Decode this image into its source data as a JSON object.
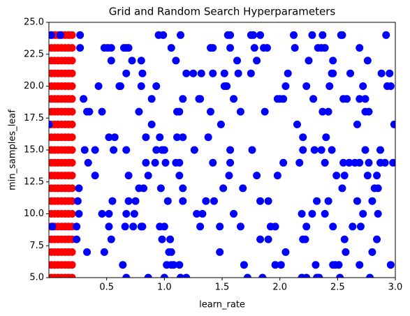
{
  "chart_data": {
    "type": "scatter",
    "title": "Grid and Random Search Hyperparameters",
    "x_label": "learn_rate",
    "y_label": "min_samples_leaf",
    "xlim": [
      0,
      3
    ],
    "ylim": [
      5,
      25
    ],
    "xticks": [
      0.5,
      {
        "value": 1.0,
        "label": "1.0"
      },
      1.5,
      {
        "value": 2.0,
        "label": "2.0"
      },
      2.5,
      {
        "value": 3.0,
        "label": "3.0"
      }
    ],
    "yticks": [
      {
        "value": 5,
        "label": "5.0"
      },
      7.5,
      {
        "value": 10,
        "label": "10.0"
      },
      12.5,
      {
        "value": 15,
        "label": "15.0"
      },
      17.5,
      {
        "value": 20,
        "label": "20.0"
      },
      22.5,
      {
        "value": 25,
        "label": "25.0"
      }
    ],
    "series": [
      {
        "color": "#ff0000",
        "x": [
          0.02,
          0.05,
          0.08,
          0.11,
          0.14,
          0.17,
          0.2,
          0.02,
          0.05,
          0.08,
          0.11,
          0.14,
          0.17,
          0.2,
          0.02,
          0.05,
          0.08,
          0.11,
          0.14,
          0.17,
          0.2,
          0.02,
          0.05,
          0.08,
          0.11,
          0.14,
          0.17,
          0.2,
          0.02,
          0.05,
          0.08,
          0.11,
          0.14,
          0.17,
          0.2,
          0.02,
          0.05,
          0.08,
          0.11,
          0.14,
          0.17,
          0.2,
          0.02,
          0.05,
          0.08,
          0.11,
          0.14,
          0.17,
          0.2,
          0.02,
          0.05,
          0.08,
          0.11,
          0.14,
          0.17,
          0.2,
          0.02,
          0.05,
          0.08,
          0.11,
          0.14,
          0.17,
          0.2,
          0.02,
          0.05,
          0.08,
          0.11,
          0.14,
          0.17,
          0.2,
          0.02,
          0.05,
          0.08,
          0.11,
          0.14,
          0.17,
          0.2,
          0.02,
          0.05,
          0.08,
          0.11,
          0.14,
          0.17,
          0.2,
          0.02,
          0.05,
          0.08,
          0.11,
          0.14,
          0.17,
          0.2,
          0.02,
          0.05,
          0.08,
          0.11,
          0.14,
          0.17,
          0.2,
          0.02,
          0.05,
          0.08,
          0.11,
          0.14,
          0.17,
          0.2,
          0.02,
          0.05,
          0.08,
          0.11,
          0.14,
          0.17,
          0.2,
          0.02,
          0.05,
          0.08,
          0.11,
          0.14,
          0.17,
          0.2,
          0.02,
          0.05,
          0.08,
          0.11,
          0.14,
          0.17,
          0.2,
          0.02,
          0.05,
          0.08,
          0.11,
          0.14,
          0.17,
          0.2,
          0.02,
          0.05,
          0.08,
          0.11,
          0.14,
          0.17,
          0.2
        ],
        "values": [
          5,
          5,
          5,
          5,
          5,
          5,
          5,
          6,
          6,
          6,
          6,
          6,
          6,
          6,
          7,
          7,
          7,
          7,
          7,
          7,
          7,
          8,
          8,
          8,
          8,
          8,
          8,
          8,
          9,
          9,
          9,
          9,
          9,
          9,
          9,
          10,
          10,
          10,
          10,
          10,
          10,
          10,
          11,
          11,
          11,
          11,
          11,
          11,
          11,
          12,
          12,
          12,
          12,
          12,
          12,
          12,
          13,
          13,
          13,
          13,
          13,
          13,
          13,
          14,
          14,
          14,
          14,
          14,
          14,
          14,
          15,
          15,
          15,
          15,
          15,
          15,
          15,
          16,
          16,
          16,
          16,
          16,
          16,
          16,
          17,
          17,
          17,
          17,
          17,
          17,
          17,
          18,
          18,
          18,
          18,
          18,
          18,
          18,
          19,
          19,
          19,
          19,
          19,
          19,
          19,
          20,
          20,
          20,
          20,
          20,
          20,
          20,
          21,
          21,
          21,
          21,
          21,
          21,
          21,
          22,
          22,
          22,
          22,
          22,
          22,
          22,
          23,
          23,
          23,
          23,
          23,
          23,
          23,
          24,
          24,
          24,
          24,
          24,
          24,
          24
        ]
      },
      {
        "color": "#0000ff",
        "x": [
          0.02,
          0.1,
          0.27,
          0.95,
          0.99,
          1.14,
          1.55,
          1.57,
          1.75,
          1.77,
          1.83,
          2.12,
          2.28,
          2.37,
          2.53,
          2.54,
          2.92,
          0.27,
          0.48,
          0.51,
          0.54,
          0.65,
          0.67,
          0.69,
          1.06,
          1.4,
          1.42,
          1.57,
          1.78,
          1.86,
          1.89,
          2.13,
          2.33,
          2.36,
          2.39,
          2.69,
          0.54,
          0.72,
          0.8,
          1.1,
          1.63,
          1.8,
          2.25,
          2.46,
          2.76,
          0.67,
          0.81,
          1.19,
          1.25,
          1.32,
          1.42,
          1.52,
          1.64,
          1.75,
          2.07,
          2.45,
          2.46,
          2.61,
          2.88,
          2.95,
          0.43,
          0.61,
          0.62,
          0.8,
          0.93,
          1.52,
          1.54,
          2.05,
          2.23,
          2.43,
          2.72,
          2.93,
          2.96,
          0.3,
          0.89,
          1.16,
          1.3,
          1.31,
          1.6,
          1.98,
          2.0,
          2.03,
          2.29,
          2.55,
          2.58,
          2.69,
          2.74,
          0.33,
          0.35,
          0.46,
          0.78,
          1.11,
          1.13,
          1.4,
          1.66,
          1.87,
          2.37,
          2.42,
          2.74,
          2.77,
          0,
          0.89,
          1.49,
          2.15,
          2.67,
          2.99,
          0.52,
          0.57,
          0.84,
          0.96,
          1.11,
          1.16,
          1.38,
          2.2,
          2.4,
          0.31,
          0.4,
          0.56,
          0.67,
          0.93,
          0.98,
          1.0,
          1.26,
          1.57,
          1.76,
          2.2,
          2.3,
          2.36,
          2.45,
          2.74,
          2.87,
          0.34,
          0.84,
          0.92,
          1.01,
          1.1,
          1.13,
          1.42,
          1.57,
          2.03,
          2.17,
          2.39,
          2.55,
          2.6,
          2.65,
          2.69,
          2.77,
          2.87,
          2.91,
          2.98,
          0.4,
          0.69,
          0.86,
          1.13,
          1.56,
          1.8,
          1.98,
          2.49,
          2.56,
          2.76,
          2.84,
          0.26,
          0.78,
          0.82,
          0.97,
          1.16,
          1.51,
          1.68,
          2.54,
          2.82,
          2.85,
          0.25,
          0.55,
          0.69,
          0.75,
          1.03,
          1.16,
          1.36,
          1.43,
          1.83,
          1.9,
          2.32,
          2.42,
          2.67,
          2.8,
          0.26,
          0.46,
          0.52,
          0.67,
          0.74,
          1.28,
          1.33,
          1.6,
          2.19,
          2.28,
          2.39,
          2.72,
          2.85,
          0.03,
          0.24,
          0.52,
          0.66,
          0.73,
          0.8,
          0.81,
          0.96,
          1.0,
          1.31,
          1.48,
          1.66,
          1.92,
          1.96,
          2.23,
          2.46,
          2.63,
          2.7,
          0.24,
          0.54,
          0.98,
          1.05,
          1.83,
          1.9,
          2.2,
          2.22,
          2.56,
          2.84,
          0.33,
          0.48,
          1.04,
          1.06,
          1.48,
          2.05,
          2.57,
          2.8,
          0.64,
          1.02,
          1.06,
          1.08,
          1.13,
          1.69,
          1.96,
          2.01,
          2.31,
          2.46,
          2.48,
          2.51,
          2.69,
          2.96,
          0.67,
          0.86,
          1.0,
          1.14,
          1.19,
          1.72,
          1.85,
          2.19,
          2.23,
          2.32,
          2.34,
          2.52,
          2.78
        ],
        "values": [
          24,
          24,
          24,
          24,
          24,
          24,
          24,
          24,
          24,
          24,
          24,
          24,
          24,
          24,
          24,
          24,
          24,
          23,
          23,
          23,
          23,
          23,
          23,
          23,
          23,
          23,
          23,
          23,
          23,
          23,
          23,
          23,
          23,
          23,
          23,
          23,
          22,
          22,
          22,
          22,
          22,
          22,
          22,
          22,
          22,
          21,
          21,
          21,
          21,
          21,
          21,
          21,
          21,
          21,
          21,
          21,
          21,
          21,
          21,
          21,
          20,
          20,
          20,
          20,
          20,
          20,
          20,
          20,
          20,
          20,
          20,
          20,
          20,
          19,
          19,
          19,
          19,
          19,
          19,
          19,
          19,
          19,
          19,
          19,
          19,
          19,
          19,
          18,
          18,
          18,
          18,
          18,
          18,
          18,
          18,
          18,
          18,
          18,
          18,
          18,
          17,
          17,
          17,
          17,
          17,
          17,
          16,
          16,
          16,
          16,
          16,
          16,
          16,
          16,
          16,
          15,
          15,
          15,
          15,
          15,
          15,
          15,
          15,
          15,
          15,
          15,
          15,
          15,
          15,
          15,
          15,
          14,
          14,
          14,
          14,
          14,
          14,
          14,
          14,
          14,
          14,
          14,
          14,
          14,
          14,
          14,
          14,
          14,
          14,
          14,
          13,
          13,
          13,
          13,
          13,
          13,
          13,
          13,
          13,
          13,
          13,
          12,
          12,
          12,
          12,
          12,
          12,
          12,
          12,
          12,
          12,
          11,
          11,
          11,
          11,
          11,
          11,
          11,
          11,
          11,
          11,
          11,
          11,
          11,
          11,
          10,
          10,
          10,
          10,
          10,
          10,
          10,
          10,
          10,
          10,
          10,
          10,
          10,
          9,
          9,
          9,
          9,
          9,
          9,
          9,
          9,
          9,
          9,
          9,
          9,
          9,
          9,
          9,
          9,
          9,
          9,
          8,
          8,
          8,
          8,
          8,
          8,
          8,
          8,
          8,
          8,
          7,
          7,
          7,
          7,
          7,
          7,
          7,
          7,
          6,
          6,
          6,
          6,
          6,
          6,
          6,
          6,
          6,
          6,
          6,
          6,
          6,
          6,
          5,
          5,
          5,
          5,
          5,
          5,
          5,
          5,
          5,
          5,
          5,
          5,
          5
        ]
      }
    ]
  }
}
